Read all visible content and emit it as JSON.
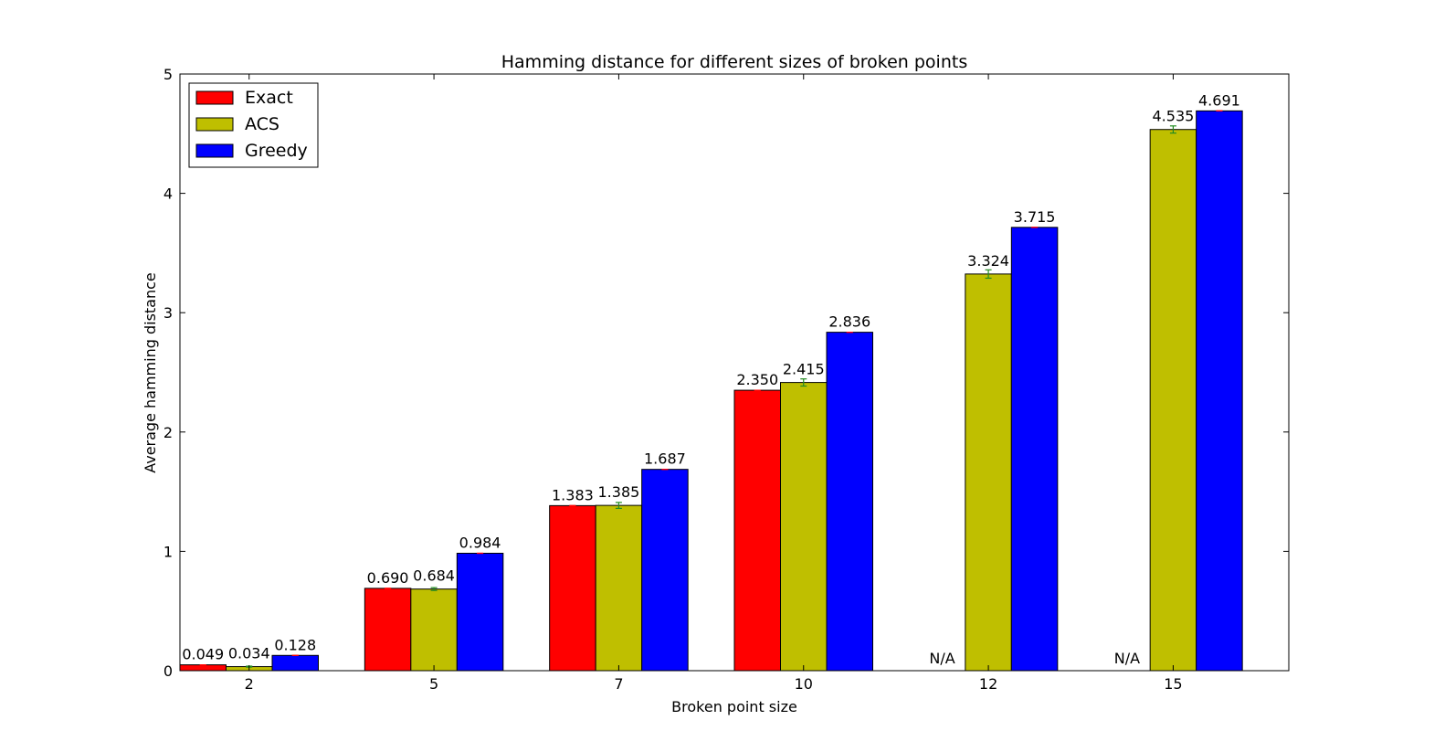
{
  "chart_data": {
    "type": "bar",
    "title": "Hamming distance for different sizes of broken points",
    "xlabel": "Broken point size",
    "ylabel": "Average hamming distance",
    "ylim": [
      0,
      5
    ],
    "yticks": [
      "0",
      "1",
      "2",
      "3",
      "4",
      "5"
    ],
    "categories": [
      "2",
      "5",
      "7",
      "10",
      "12",
      "15"
    ],
    "grid": false,
    "legend_position": "top-left",
    "series": [
      {
        "name": "Exact",
        "color": "#ff0000",
        "values": [
          0.049,
          0.69,
          1.383,
          2.35,
          null,
          null
        ],
        "labels": [
          "0.049",
          "0.690",
          "1.383",
          "2.350",
          "N/A",
          "N/A"
        ],
        "errors": [
          0,
          0,
          0,
          0,
          0,
          0
        ]
      },
      {
        "name": "ACS",
        "color": "#bfbf00",
        "values": [
          0.034,
          0.684,
          1.385,
          2.415,
          3.324,
          4.535
        ],
        "labels": [
          "0.034",
          "0.684",
          "1.385",
          "2.415",
          "3.324",
          "4.535"
        ],
        "errors": [
          0.004,
          0.012,
          0.025,
          0.03,
          0.035,
          0.03
        ]
      },
      {
        "name": "Greedy",
        "color": "#0000ff",
        "values": [
          0.128,
          0.984,
          1.687,
          2.836,
          3.715,
          4.691
        ],
        "labels": [
          "0.128",
          "0.984",
          "1.687",
          "2.836",
          "3.715",
          "4.691"
        ],
        "errors": [
          0,
          0,
          0,
          0,
          0,
          0
        ]
      }
    ],
    "error_bar_color": "#228b22",
    "error_bar_color_secondary": "#ff0000"
  }
}
